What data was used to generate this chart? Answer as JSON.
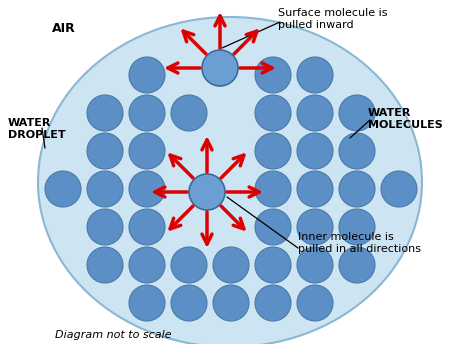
{
  "bg_color": "#ffffff",
  "droplet_fill": "#cde4f2",
  "droplet_edge": "#8ab8d4",
  "molecule_fill": "#5b8fc5",
  "molecule_edge": "#4a7aaa",
  "arrow_color": "#dd0000",
  "air_label": "AIR",
  "water_droplet_label": "WATER\nDROPLET",
  "water_molecules_label": "WATER\nMOLECULES",
  "surface_label": "Surface molecule is\npulled inward",
  "inner_label": "Inner molecule is\npulled in all directions",
  "footnote": "Diagram not to scale",
  "figw": 4.74,
  "figh": 3.44,
  "dpi": 100
}
